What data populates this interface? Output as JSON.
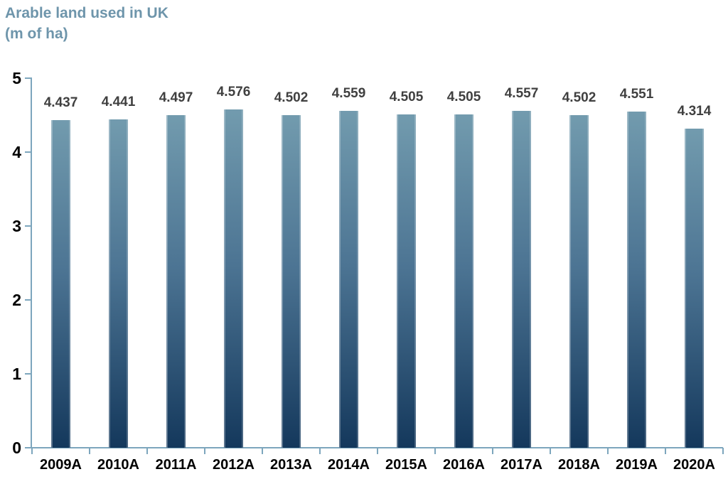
{
  "chart_data": {
    "type": "bar",
    "title": "Arable land used in UK",
    "subtitle": "(m of ha)",
    "categories": [
      "2009A",
      "2010A",
      "2011A",
      "2012A",
      "2013A",
      "2014A",
      "2015A",
      "2016A",
      "2017A",
      "2018A",
      "2019A",
      "2020A"
    ],
    "values": [
      4.437,
      4.441,
      4.497,
      4.576,
      4.502,
      4.559,
      4.505,
      4.505,
      4.557,
      4.502,
      4.551,
      4.314
    ],
    "value_label_decimals": 3,
    "xlabel": "",
    "ylabel": "",
    "ylim": [
      0,
      5
    ],
    "yticks": [
      0,
      1,
      2,
      3,
      4,
      5
    ],
    "grid": false,
    "legend": "none",
    "colors": {
      "bar_top": "#729BAE",
      "bar_mid": "#4C7493",
      "bar_bottom": "#14385C",
      "axis": "#7DA6BD",
      "value_label": "#404040",
      "tick_label": "#000000",
      "title": "#6E95AB",
      "background": "#FFFFFF"
    }
  }
}
